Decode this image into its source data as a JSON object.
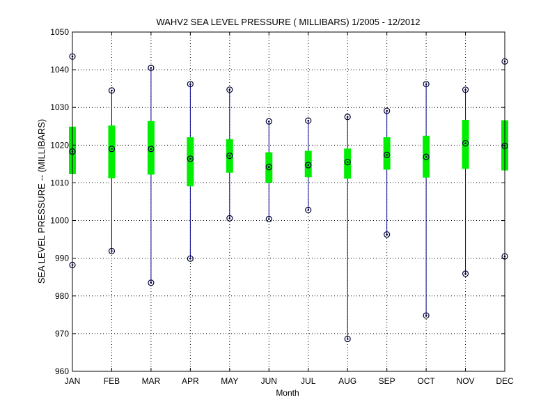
{
  "chart_data": {
    "type": "box",
    "title": "WAHV2  SEA LEVEL PRESSURE ( MILLIBARS) 1/2005 - 12/2012",
    "xlabel": "Month",
    "ylabel": "SEA LEVEL PRESSURE -- (MILLIBARS)",
    "ylim": [
      960,
      1050
    ],
    "yticks": [
      960,
      970,
      980,
      990,
      1000,
      1010,
      1020,
      1030,
      1040,
      1050
    ],
    "grid": true,
    "categories": [
      "JAN",
      "FEB",
      "MAR",
      "APR",
      "MAY",
      "JUN",
      "JUL",
      "AUG",
      "SEP",
      "OCT",
      "NOV",
      "DEC"
    ],
    "max": [
      1043.5,
      1034.5,
      1040.5,
      1036.2,
      1034.7,
      1026.3,
      1026.5,
      1027.5,
      1029.1,
      1036.2,
      1034.7,
      1042.2
    ],
    "q3": [
      1024.9,
      1025.2,
      1026.4,
      1022.1,
      1021.6,
      1018.1,
      1018.5,
      1019.1,
      1022.1,
      1022.5,
      1026.7,
      1026.6
    ],
    "mean": [
      1018.3,
      1019.0,
      1019.0,
      1016.4,
      1017.2,
      1014.2,
      1014.7,
      1015.5,
      1017.4,
      1016.9,
      1020.5,
      1019.8
    ],
    "q1": [
      1012.3,
      1011.2,
      1012.2,
      1009.1,
      1012.7,
      1010.0,
      1011.5,
      1011.1,
      1013.5,
      1011.4,
      1013.7,
      1013.3
    ],
    "min": [
      988.2,
      991.9,
      983.5,
      989.9,
      1000.6,
      1000.4,
      1002.8,
      968.6,
      996.3,
      974.8,
      985.9,
      990.5
    ],
    "colors": {
      "whisker": "#00008b",
      "box": "#00ee00",
      "marker": "#000033",
      "grid": "#000000"
    }
  }
}
